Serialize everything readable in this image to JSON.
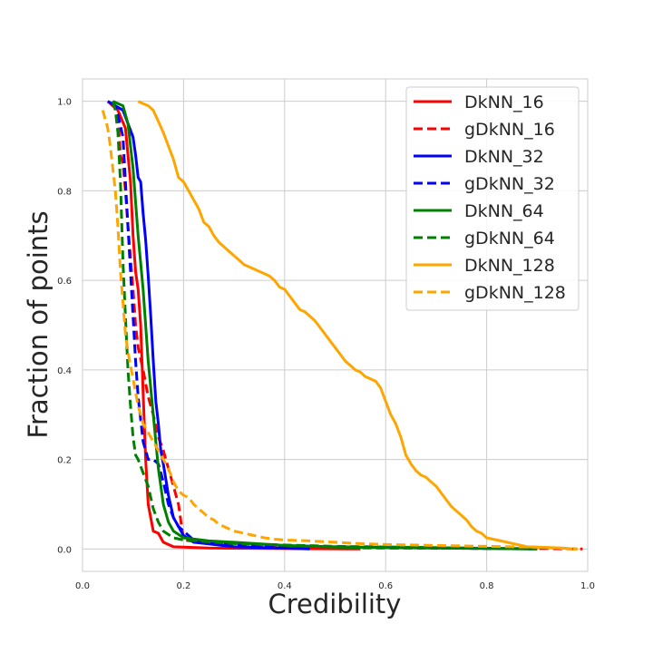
{
  "chart_data": {
    "type": "line",
    "title": "",
    "xlabel": "Credibility",
    "ylabel": "Fraction of points",
    "xlim": [
      0.0,
      1.0
    ],
    "ylim": [
      -0.05,
      1.05
    ],
    "grid": true,
    "legend_position": "top-right",
    "x_ticks": [
      "0.0",
      "0.2",
      "0.4",
      "0.6",
      "0.8",
      "1.0"
    ],
    "y_ticks": [
      "0.0",
      "0.2",
      "0.4",
      "0.6",
      "0.8",
      "1.0"
    ],
    "series": [
      {
        "name": "DkNN_16",
        "color": "#ff0000",
        "dash": "solid",
        "points": [
          [
            0.05,
            1.0
          ],
          [
            0.07,
            0.98
          ],
          [
            0.085,
            0.94
          ],
          [
            0.095,
            0.82
          ],
          [
            0.1,
            0.7
          ],
          [
            0.105,
            0.62
          ],
          [
            0.11,
            0.58
          ],
          [
            0.115,
            0.5
          ],
          [
            0.12,
            0.35
          ],
          [
            0.125,
            0.2
          ],
          [
            0.13,
            0.1
          ],
          [
            0.135,
            0.07
          ],
          [
            0.14,
            0.04
          ],
          [
            0.15,
            0.035
          ],
          [
            0.16,
            0.015
          ],
          [
            0.18,
            0.005
          ],
          [
            0.25,
            0.002
          ],
          [
            0.55,
            0.0
          ]
        ]
      },
      {
        "name": "gDkNN_16",
        "color": "#ff0000",
        "dash": "dashed",
        "points": [
          [
            0.06,
            1.0
          ],
          [
            0.07,
            0.97
          ],
          [
            0.075,
            0.88
          ],
          [
            0.08,
            0.86
          ],
          [
            0.085,
            0.8
          ],
          [
            0.09,
            0.72
          ],
          [
            0.1,
            0.58
          ],
          [
            0.105,
            0.5
          ],
          [
            0.11,
            0.45
          ],
          [
            0.12,
            0.4
          ],
          [
            0.13,
            0.34
          ],
          [
            0.14,
            0.3
          ],
          [
            0.15,
            0.25
          ],
          [
            0.16,
            0.22
          ],
          [
            0.17,
            0.18
          ],
          [
            0.18,
            0.14
          ],
          [
            0.19,
            0.1
          ],
          [
            0.2,
            0.02
          ],
          [
            0.3,
            0.005
          ],
          [
            0.6,
            0.002
          ],
          [
            0.9,
            0.001
          ],
          [
            0.99,
            0.0
          ]
        ]
      },
      {
        "name": "DkNN_32",
        "color": "#0000ff",
        "dash": "solid",
        "points": [
          [
            0.05,
            1.0
          ],
          [
            0.08,
            0.98
          ],
          [
            0.1,
            0.92
          ],
          [
            0.105,
            0.88
          ],
          [
            0.11,
            0.83
          ],
          [
            0.115,
            0.82
          ],
          [
            0.12,
            0.75
          ],
          [
            0.125,
            0.69
          ],
          [
            0.13,
            0.61
          ],
          [
            0.135,
            0.52
          ],
          [
            0.14,
            0.42
          ],
          [
            0.145,
            0.33
          ],
          [
            0.15,
            0.28
          ],
          [
            0.155,
            0.22
          ],
          [
            0.16,
            0.19
          ],
          [
            0.17,
            0.12
          ],
          [
            0.18,
            0.07
          ],
          [
            0.2,
            0.03
          ],
          [
            0.22,
            0.015
          ],
          [
            0.3,
            0.005
          ],
          [
            0.45,
            0.0
          ]
        ]
      },
      {
        "name": "gDkNN_32",
        "color": "#0000ff",
        "dash": "dashed",
        "points": [
          [
            0.06,
            1.0
          ],
          [
            0.07,
            0.97
          ],
          [
            0.08,
            0.92
          ],
          [
            0.085,
            0.82
          ],
          [
            0.09,
            0.72
          ],
          [
            0.095,
            0.62
          ],
          [
            0.1,
            0.52
          ],
          [
            0.105,
            0.42
          ],
          [
            0.11,
            0.34
          ],
          [
            0.12,
            0.24
          ],
          [
            0.13,
            0.2
          ],
          [
            0.14,
            0.2
          ],
          [
            0.15,
            0.19
          ],
          [
            0.16,
            0.15
          ],
          [
            0.17,
            0.1
          ],
          [
            0.18,
            0.07
          ],
          [
            0.19,
            0.05
          ],
          [
            0.2,
            0.04
          ],
          [
            0.21,
            0.03
          ],
          [
            0.22,
            0.02
          ],
          [
            0.3,
            0.01
          ],
          [
            0.5,
            0.005
          ],
          [
            0.7,
            0.002
          ],
          [
            0.9,
            0.0
          ]
        ]
      },
      {
        "name": "DkNN_64",
        "color": "#008000",
        "dash": "solid",
        "points": [
          [
            0.06,
            1.0
          ],
          [
            0.08,
            0.99
          ],
          [
            0.09,
            0.95
          ],
          [
            0.1,
            0.85
          ],
          [
            0.11,
            0.7
          ],
          [
            0.12,
            0.58
          ],
          [
            0.13,
            0.42
          ],
          [
            0.14,
            0.3
          ],
          [
            0.15,
            0.18
          ],
          [
            0.16,
            0.1
          ],
          [
            0.17,
            0.06
          ],
          [
            0.18,
            0.04
          ],
          [
            0.2,
            0.025
          ],
          [
            0.25,
            0.018
          ],
          [
            0.3,
            0.015
          ],
          [
            0.4,
            0.008
          ],
          [
            0.5,
            0.004
          ],
          [
            0.7,
            0.002
          ],
          [
            0.9,
            0.0
          ]
        ]
      },
      {
        "name": "gDkNN_64",
        "color": "#008000",
        "dash": "dashed",
        "points": [
          [
            0.06,
            1.0
          ],
          [
            0.065,
            0.98
          ],
          [
            0.07,
            0.93
          ],
          [
            0.075,
            0.82
          ],
          [
            0.08,
            0.64
          ],
          [
            0.085,
            0.52
          ],
          [
            0.09,
            0.4
          ],
          [
            0.095,
            0.32
          ],
          [
            0.1,
            0.25
          ],
          [
            0.105,
            0.21
          ],
          [
            0.11,
            0.2
          ],
          [
            0.12,
            0.17
          ],
          [
            0.13,
            0.14
          ],
          [
            0.14,
            0.09
          ],
          [
            0.15,
            0.06
          ],
          [
            0.16,
            0.04
          ],
          [
            0.18,
            0.025
          ],
          [
            0.2,
            0.02
          ],
          [
            0.3,
            0.012
          ],
          [
            0.5,
            0.006
          ],
          [
            0.7,
            0.003
          ],
          [
            0.9,
            0.0
          ]
        ]
      },
      {
        "name": "DkNN_128",
        "color": "#ffa500",
        "dash": "solid",
        "points": [
          [
            0.11,
            1.0
          ],
          [
            0.12,
            0.995
          ],
          [
            0.13,
            0.99
          ],
          [
            0.14,
            0.98
          ],
          [
            0.15,
            0.955
          ],
          [
            0.16,
            0.93
          ],
          [
            0.17,
            0.9
          ],
          [
            0.18,
            0.87
          ],
          [
            0.19,
            0.83
          ],
          [
            0.2,
            0.82
          ],
          [
            0.21,
            0.8
          ],
          [
            0.22,
            0.78
          ],
          [
            0.23,
            0.76
          ],
          [
            0.24,
            0.73
          ],
          [
            0.25,
            0.72
          ],
          [
            0.26,
            0.7
          ],
          [
            0.27,
            0.685
          ],
          [
            0.28,
            0.675
          ],
          [
            0.29,
            0.665
          ],
          [
            0.3,
            0.655
          ],
          [
            0.31,
            0.645
          ],
          [
            0.32,
            0.635
          ],
          [
            0.33,
            0.63
          ],
          [
            0.34,
            0.625
          ],
          [
            0.35,
            0.62
          ],
          [
            0.36,
            0.615
          ],
          [
            0.37,
            0.61
          ],
          [
            0.38,
            0.6
          ],
          [
            0.39,
            0.585
          ],
          [
            0.4,
            0.58
          ],
          [
            0.41,
            0.565
          ],
          [
            0.42,
            0.55
          ],
          [
            0.43,
            0.535
          ],
          [
            0.44,
            0.53
          ],
          [
            0.45,
            0.52
          ],
          [
            0.46,
            0.51
          ],
          [
            0.47,
            0.495
          ],
          [
            0.48,
            0.48
          ],
          [
            0.49,
            0.465
          ],
          [
            0.5,
            0.45
          ],
          [
            0.51,
            0.435
          ],
          [
            0.52,
            0.42
          ],
          [
            0.53,
            0.41
          ],
          [
            0.54,
            0.4
          ],
          [
            0.55,
            0.395
          ],
          [
            0.56,
            0.385
          ],
          [
            0.57,
            0.38
          ],
          [
            0.58,
            0.375
          ],
          [
            0.59,
            0.36
          ],
          [
            0.6,
            0.33
          ],
          [
            0.61,
            0.3
          ],
          [
            0.62,
            0.28
          ],
          [
            0.63,
            0.25
          ],
          [
            0.64,
            0.21
          ],
          [
            0.65,
            0.19
          ],
          [
            0.66,
            0.175
          ],
          [
            0.67,
            0.165
          ],
          [
            0.68,
            0.16
          ],
          [
            0.69,
            0.15
          ],
          [
            0.7,
            0.14
          ],
          [
            0.71,
            0.125
          ],
          [
            0.72,
            0.11
          ],
          [
            0.73,
            0.095
          ],
          [
            0.74,
            0.085
          ],
          [
            0.75,
            0.075
          ],
          [
            0.76,
            0.065
          ],
          [
            0.77,
            0.05
          ],
          [
            0.78,
            0.04
          ],
          [
            0.79,
            0.035
          ],
          [
            0.8,
            0.025
          ],
          [
            0.82,
            0.02
          ],
          [
            0.84,
            0.015
          ],
          [
            0.86,
            0.01
          ],
          [
            0.88,
            0.005
          ],
          [
            0.9,
            0.004
          ],
          [
            0.95,
            0.002
          ],
          [
            0.97,
            0.0
          ]
        ]
      },
      {
        "name": "gDkNN_128",
        "color": "#ffa500",
        "dash": "dashed",
        "points": [
          [
            0.04,
            0.98
          ],
          [
            0.05,
            0.94
          ],
          [
            0.055,
            0.9
          ],
          [
            0.06,
            0.85
          ],
          [
            0.065,
            0.8
          ],
          [
            0.07,
            0.72
          ],
          [
            0.075,
            0.62
          ],
          [
            0.08,
            0.55
          ],
          [
            0.085,
            0.48
          ],
          [
            0.09,
            0.44
          ],
          [
            0.1,
            0.38
          ],
          [
            0.11,
            0.32
          ],
          [
            0.12,
            0.28
          ],
          [
            0.13,
            0.26
          ],
          [
            0.14,
            0.24
          ],
          [
            0.15,
            0.22
          ],
          [
            0.16,
            0.2
          ],
          [
            0.17,
            0.18
          ],
          [
            0.18,
            0.15
          ],
          [
            0.19,
            0.13
          ],
          [
            0.2,
            0.12
          ],
          [
            0.21,
            0.115
          ],
          [
            0.22,
            0.1
          ],
          [
            0.23,
            0.09
          ],
          [
            0.24,
            0.08
          ],
          [
            0.25,
            0.07
          ],
          [
            0.26,
            0.065
          ],
          [
            0.27,
            0.055
          ],
          [
            0.28,
            0.05
          ],
          [
            0.29,
            0.045
          ],
          [
            0.3,
            0.04
          ],
          [
            0.32,
            0.035
          ],
          [
            0.34,
            0.03
          ],
          [
            0.36,
            0.025
          ],
          [
            0.38,
            0.022
          ],
          [
            0.4,
            0.02
          ],
          [
            0.45,
            0.018
          ],
          [
            0.5,
            0.015
          ],
          [
            0.55,
            0.012
          ],
          [
            0.6,
            0.01
          ],
          [
            0.7,
            0.008
          ],
          [
            0.8,
            0.006
          ],
          [
            0.9,
            0.004
          ],
          [
            0.98,
            0.0
          ]
        ]
      }
    ]
  }
}
